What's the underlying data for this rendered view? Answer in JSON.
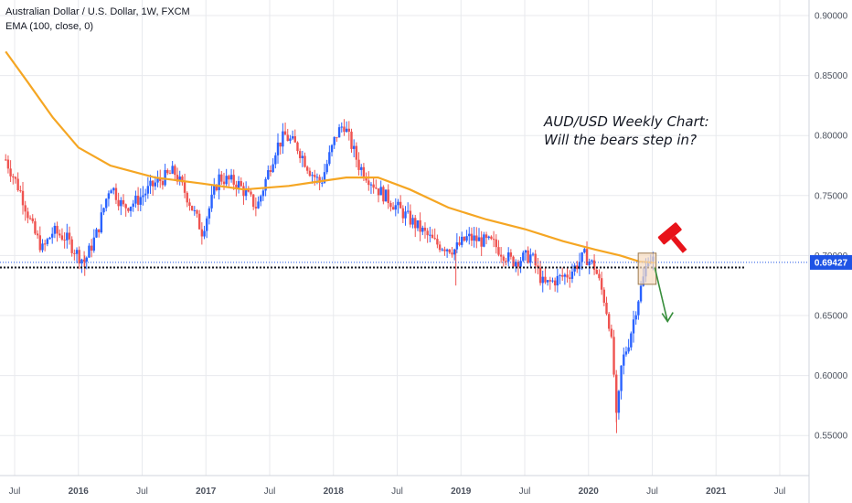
{
  "legend": {
    "symbol_line": "Australian Dollar / U.S. Dollar, 1W, FXCM",
    "indicator_line": "EMA (100, close, 0)"
  },
  "annotation": {
    "line1": "AUD/USD Weekly Chart:",
    "line2": "Will the bears step in?"
  },
  "colors": {
    "up": "#2962ff",
    "down": "#ef5350",
    "ema": "#f5a623",
    "grid": "#e8eaee",
    "price_label_bg": "#1e53e5",
    "arrow": "#388e3c",
    "hammer": "#e8131a",
    "box_fill": "#f7dcc0",
    "box_stroke": "#9c7a4f"
  },
  "chart_data": {
    "type": "candlestick",
    "title": "Australian Dollar / U.S. Dollar, 1W, FXCM",
    "ylim": [
      0.52,
      0.91
    ],
    "y_ticks": [
      "0.90000",
      "0.85000",
      "0.80000",
      "0.75000",
      "0.70000",
      "0.65000",
      "0.60000",
      "0.55000"
    ],
    "x_ticks": [
      {
        "label": "Jul",
        "year": false,
        "date": 2015.5
      },
      {
        "label": "2016",
        "year": true,
        "date": 2016.0
      },
      {
        "label": "Jul",
        "year": false,
        "date": 2016.5
      },
      {
        "label": "2017",
        "year": true,
        "date": 2017.0
      },
      {
        "label": "Jul",
        "year": false,
        "date": 2017.5
      },
      {
        "label": "2018",
        "year": true,
        "date": 2018.0
      },
      {
        "label": "Jul",
        "year": false,
        "date": 2018.5
      },
      {
        "label": "2019",
        "year": true,
        "date": 2019.0
      },
      {
        "label": "Jul",
        "year": false,
        "date": 2019.5
      },
      {
        "label": "2020",
        "year": true,
        "date": 2020.0
      },
      {
        "label": "Jul",
        "year": false,
        "date": 2020.5
      },
      {
        "label": "2021",
        "year": true,
        "date": 2021.0
      },
      {
        "label": "Jul",
        "year": false,
        "date": 2021.5
      }
    ],
    "last_price": "0.69427",
    "support_level": 0.69,
    "price_path": [
      [
        2015.43,
        0.78
      ],
      [
        2015.55,
        0.752
      ],
      [
        2015.65,
        0.72
      ],
      [
        2015.72,
        0.705
      ],
      [
        2015.8,
        0.72
      ],
      [
        2015.9,
        0.715
      ],
      [
        2016.0,
        0.7
      ],
      [
        2016.05,
        0.695
      ],
      [
        2016.15,
        0.72
      ],
      [
        2016.25,
        0.76
      ],
      [
        2016.35,
        0.74
      ],
      [
        2016.45,
        0.745
      ],
      [
        2016.6,
        0.76
      ],
      [
        2016.75,
        0.77
      ],
      [
        2016.85,
        0.75
      ],
      [
        2016.97,
        0.72
      ],
      [
        2017.1,
        0.765
      ],
      [
        2017.25,
        0.76
      ],
      [
        2017.4,
        0.74
      ],
      [
        2017.55,
        0.79
      ],
      [
        2017.62,
        0.8
      ],
      [
        2017.72,
        0.79
      ],
      [
        2017.82,
        0.77
      ],
      [
        2017.9,
        0.76
      ],
      [
        2018.02,
        0.8
      ],
      [
        2018.08,
        0.81
      ],
      [
        2018.2,
        0.775
      ],
      [
        2018.35,
        0.755
      ],
      [
        2018.5,
        0.74
      ],
      [
        2018.65,
        0.725
      ],
      [
        2018.8,
        0.71
      ],
      [
        2018.95,
        0.705
      ],
      [
        2019.05,
        0.715
      ],
      [
        2019.25,
        0.71
      ],
      [
        2019.4,
        0.695
      ],
      [
        2019.55,
        0.7
      ],
      [
        2019.65,
        0.675
      ],
      [
        2019.85,
        0.685
      ],
      [
        2019.97,
        0.7
      ],
      [
        2020.05,
        0.69
      ],
      [
        2020.12,
        0.665
      ],
      [
        2020.17,
        0.64
      ],
      [
        2020.2,
        0.6
      ],
      [
        2020.22,
        0.56
      ],
      [
        2020.26,
        0.61
      ],
      [
        2020.32,
        0.63
      ],
      [
        2020.38,
        0.66
      ],
      [
        2020.44,
        0.685
      ],
      [
        2020.47,
        0.7
      ],
      [
        2020.52,
        0.695
      ]
    ],
    "ema_100": [
      [
        2015.43,
        0.87
      ],
      [
        2015.6,
        0.845
      ],
      [
        2015.8,
        0.815
      ],
      [
        2016.0,
        0.79
      ],
      [
        2016.25,
        0.775
      ],
      [
        2016.6,
        0.765
      ],
      [
        2016.97,
        0.76
      ],
      [
        2017.3,
        0.755
      ],
      [
        2017.65,
        0.758
      ],
      [
        2017.9,
        0.762
      ],
      [
        2018.1,
        0.765
      ],
      [
        2018.35,
        0.765
      ],
      [
        2018.6,
        0.755
      ],
      [
        2018.9,
        0.74
      ],
      [
        2019.2,
        0.73
      ],
      [
        2019.5,
        0.722
      ],
      [
        2019.8,
        0.712
      ],
      [
        2020.05,
        0.705
      ],
      [
        2020.25,
        0.7
      ],
      [
        2020.4,
        0.695
      ],
      [
        2020.52,
        0.694
      ]
    ],
    "highlight_box": {
      "date_start": 2020.39,
      "date_end": 2020.53,
      "low": 0.676,
      "high": 0.702
    }
  }
}
